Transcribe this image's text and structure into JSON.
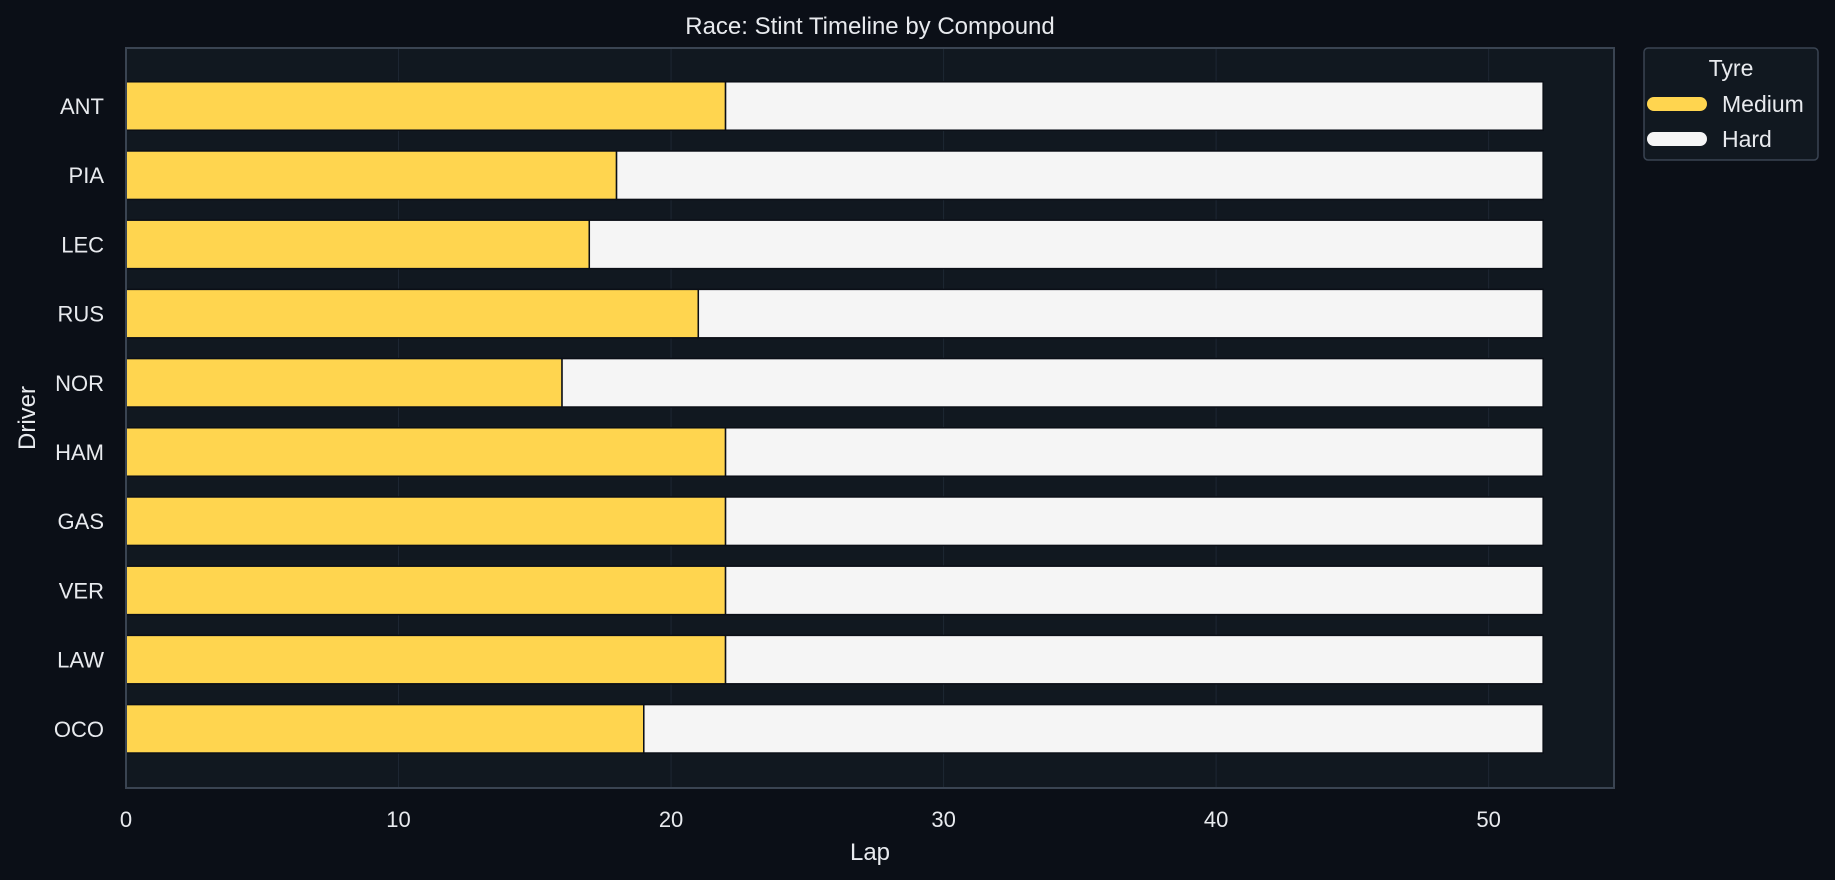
{
  "chart_data": {
    "type": "bar",
    "orientation": "horizontal",
    "stacked": true,
    "title": "Race: Stint Timeline by Compound",
    "xlabel": "Lap",
    "ylabel": "Driver",
    "xlim": [
      0,
      54.6
    ],
    "xticks": [
      0,
      10,
      20,
      30,
      40,
      50
    ],
    "grid": true,
    "legend": {
      "title": "Tyre",
      "placement": "outside top-right",
      "entries": [
        {
          "label": "Medium",
          "color": "#ffd54f"
        },
        {
          "label": "Hard",
          "color": "#f5f5f5"
        }
      ]
    },
    "categories": [
      "ANT",
      "PIA",
      "LEC",
      "RUS",
      "NOR",
      "HAM",
      "GAS",
      "VER",
      "LAW",
      "OCO"
    ],
    "stints": [
      {
        "driver": "ANT",
        "segments": [
          {
            "compound": "Medium",
            "start": 0,
            "end": 22
          },
          {
            "compound": "Hard",
            "start": 22,
            "end": 52
          }
        ]
      },
      {
        "driver": "PIA",
        "segments": [
          {
            "compound": "Medium",
            "start": 0,
            "end": 18
          },
          {
            "compound": "Hard",
            "start": 18,
            "end": 52
          }
        ]
      },
      {
        "driver": "LEC",
        "segments": [
          {
            "compound": "Medium",
            "start": 0,
            "end": 17
          },
          {
            "compound": "Hard",
            "start": 17,
            "end": 52
          }
        ]
      },
      {
        "driver": "RUS",
        "segments": [
          {
            "compound": "Medium",
            "start": 0,
            "end": 21
          },
          {
            "compound": "Hard",
            "start": 21,
            "end": 52
          }
        ]
      },
      {
        "driver": "NOR",
        "segments": [
          {
            "compound": "Medium",
            "start": 0,
            "end": 16
          },
          {
            "compound": "Hard",
            "start": 16,
            "end": 52
          }
        ]
      },
      {
        "driver": "HAM",
        "segments": [
          {
            "compound": "Medium",
            "start": 0,
            "end": 22
          },
          {
            "compound": "Hard",
            "start": 22,
            "end": 52
          }
        ]
      },
      {
        "driver": "GAS",
        "segments": [
          {
            "compound": "Medium",
            "start": 0,
            "end": 22
          },
          {
            "compound": "Hard",
            "start": 22,
            "end": 52
          }
        ]
      },
      {
        "driver": "VER",
        "segments": [
          {
            "compound": "Medium",
            "start": 0,
            "end": 22
          },
          {
            "compound": "Hard",
            "start": 22,
            "end": 52
          }
        ]
      },
      {
        "driver": "LAW",
        "segments": [
          {
            "compound": "Medium",
            "start": 0,
            "end": 22
          },
          {
            "compound": "Hard",
            "start": 22,
            "end": 52
          }
        ]
      },
      {
        "driver": "OCO",
        "segments": [
          {
            "compound": "Medium",
            "start": 0,
            "end": 19
          },
          {
            "compound": "Hard",
            "start": 19,
            "end": 52
          }
        ]
      }
    ],
    "colors": {
      "Medium": "#ffd54f",
      "Hard": "#f5f5f5",
      "background": "#0b0f17",
      "plot_background": "#111820",
      "grid": "#1e2733",
      "frame": "#3a4452",
      "text": "#e8eaee"
    }
  }
}
